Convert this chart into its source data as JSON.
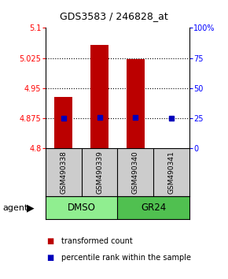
{
  "title": "GDS3583 / 246828_at",
  "samples": [
    "GSM490338",
    "GSM490339",
    "GSM490340",
    "GSM490341"
  ],
  "groups": [
    "DMSO",
    "DMSO",
    "GR24",
    "GR24"
  ],
  "bar_values": [
    4.928,
    5.058,
    5.022,
    4.801
  ],
  "percentile_pct": [
    25,
    26,
    26,
    25
  ],
  "ylim": [
    4.8,
    5.1
  ],
  "yticks_left": [
    4.8,
    4.875,
    4.95,
    5.025,
    5.1
  ],
  "yticks_right": [
    0,
    25,
    50,
    75,
    100
  ],
  "ytick_labels_left": [
    "4.8",
    "4.875",
    "4.95",
    "5.025",
    "5.1"
  ],
  "ytick_labels_right": [
    "0",
    "25",
    "50",
    "75",
    "100%"
  ],
  "bar_color": "#BB0000",
  "dot_color": "#0000BB",
  "bar_width": 0.5,
  "legend_bar": "transformed count",
  "legend_dot": "percentile rank within the sample",
  "background_color": "#ffffff",
  "dmso_color": "#90EE90",
  "gr24_color": "#50C050",
  "sample_box_color": "#CCCCCC"
}
